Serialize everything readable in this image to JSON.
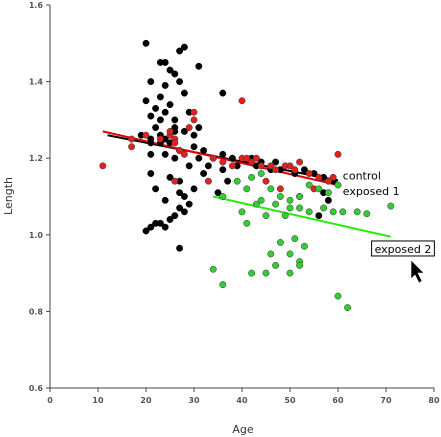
{
  "chart_data": {
    "type": "scatter",
    "xlabel": "Age",
    "ylabel": "Length",
    "xlim": [
      0,
      80
    ],
    "ylim": [
      0.6,
      1.6
    ],
    "xticks": [
      "0",
      "10",
      "20",
      "30",
      "40",
      "50",
      "60",
      "70",
      "80"
    ],
    "yticks": [
      "0.6",
      "0.8",
      "1.0",
      "1.2",
      "1.4",
      "1.6"
    ],
    "grid": false,
    "annotations": [
      {
        "text": "control",
        "x": 61,
        "y": 1.155
      },
      {
        "text": "exposed 1",
        "x": 61,
        "y": 1.115
      },
      {
        "text": "exposed 2",
        "x": 67,
        "y": 0.963,
        "boxed": true
      }
    ],
    "fit_lines": [
      {
        "name": "control",
        "color": "#000000",
        "x": [
          12,
          60
        ],
        "y": [
          1.26,
          1.142
        ]
      },
      {
        "name": "exposed 1",
        "color": "#e00000",
        "x": [
          11,
          60
        ],
        "y": [
          1.27,
          1.13
        ]
      },
      {
        "name": "exposed 2",
        "color": "#22ee00",
        "x": [
          34,
          71
        ],
        "y": [
          1.1,
          0.995
        ]
      }
    ],
    "series": [
      {
        "name": "control",
        "color": "#000000",
        "points": [
          [
            20,
            1.5
          ],
          [
            23,
            1.45
          ],
          [
            24,
            1.45
          ],
          [
            28,
            1.49
          ],
          [
            27,
            1.48
          ],
          [
            31,
            1.44
          ],
          [
            25,
            1.43
          ],
          [
            26,
            1.42
          ],
          [
            21,
            1.4
          ],
          [
            24,
            1.39
          ],
          [
            27,
            1.4
          ],
          [
            28,
            1.37
          ],
          [
            23,
            1.36
          ],
          [
            20,
            1.35
          ],
          [
            36,
            1.37
          ],
          [
            22,
            1.33
          ],
          [
            25,
            1.34
          ],
          [
            24,
            1.32
          ],
          [
            21,
            1.31
          ],
          [
            29,
            1.32
          ],
          [
            23,
            1.3
          ],
          [
            26,
            1.3
          ],
          [
            22,
            1.28
          ],
          [
            26,
            1.28
          ],
          [
            31,
            1.28
          ],
          [
            30,
            1.26
          ],
          [
            19,
            1.26
          ],
          [
            23,
            1.26
          ],
          [
            26,
            1.27
          ],
          [
            28,
            1.27
          ],
          [
            21,
            1.25
          ],
          [
            24,
            1.25
          ],
          [
            23,
            1.24
          ],
          [
            25,
            1.24
          ],
          [
            21,
            1.24
          ],
          [
            30,
            1.23
          ],
          [
            27,
            1.22
          ],
          [
            32,
            1.22
          ],
          [
            21,
            1.21
          ],
          [
            24,
            1.21
          ],
          [
            26,
            1.2
          ],
          [
            31,
            1.2
          ],
          [
            34,
            1.2
          ],
          [
            36,
            1.21
          ],
          [
            38,
            1.2
          ],
          [
            42,
            1.2
          ],
          [
            44,
            1.19
          ],
          [
            47,
            1.19
          ],
          [
            29,
            1.18
          ],
          [
            33,
            1.18
          ],
          [
            36,
            1.17
          ],
          [
            39,
            1.18
          ],
          [
            43,
            1.18
          ],
          [
            46,
            1.17
          ],
          [
            48,
            1.17
          ],
          [
            51,
            1.16
          ],
          [
            53,
            1.17
          ],
          [
            55,
            1.16
          ],
          [
            57,
            1.15
          ],
          [
            59,
            1.14
          ],
          [
            21,
            1.16
          ],
          [
            25,
            1.15
          ],
          [
            27,
            1.14
          ],
          [
            32,
            1.16
          ],
          [
            37,
            1.14
          ],
          [
            22,
            1.12
          ],
          [
            27,
            1.11
          ],
          [
            28,
            1.1
          ],
          [
            30,
            1.12
          ],
          [
            35,
            1.11
          ],
          [
            24,
            1.09
          ],
          [
            29,
            1.08
          ],
          [
            27,
            1.07
          ],
          [
            28,
            1.06
          ],
          [
            26,
            1.05
          ],
          [
            25,
            1.04
          ],
          [
            23,
            1.03
          ],
          [
            22,
            1.03
          ],
          [
            21,
            1.02
          ],
          [
            20,
            1.01
          ],
          [
            24,
            1.02
          ],
          [
            27,
            0.965
          ],
          [
            56,
            1.05
          ],
          [
            58,
            1.09
          ],
          [
            57,
            1.11
          ]
        ]
      },
      {
        "name": "exposed 1",
        "color": "#dd2222",
        "points": [
          [
            11,
            1.18
          ],
          [
            17,
            1.23
          ],
          [
            17,
            1.25
          ],
          [
            20,
            1.26
          ],
          [
            23,
            1.25
          ],
          [
            25,
            1.26
          ],
          [
            25,
            1.27
          ],
          [
            26,
            1.25
          ],
          [
            26,
            1.24
          ],
          [
            28,
            1.21
          ],
          [
            29,
            1.28
          ],
          [
            30,
            1.32
          ],
          [
            30,
            1.3
          ],
          [
            27,
            1.22
          ],
          [
            26,
            1.14
          ],
          [
            33,
            1.14
          ],
          [
            40,
            1.35
          ],
          [
            34,
            1.2
          ],
          [
            36,
            1.19
          ],
          [
            38,
            1.18
          ],
          [
            40,
            1.2
          ],
          [
            41,
            1.2
          ],
          [
            42,
            1.19
          ],
          [
            43,
            1.2
          ],
          [
            44,
            1.18
          ],
          [
            46,
            1.18
          ],
          [
            47,
            1.17
          ],
          [
            49,
            1.18
          ],
          [
            50,
            1.18
          ],
          [
            51,
            1.17
          ],
          [
            52,
            1.19
          ],
          [
            54,
            1.16
          ],
          [
            56,
            1.15
          ],
          [
            58,
            1.14
          ],
          [
            59,
            1.15
          ],
          [
            60,
            1.21
          ],
          [
            52,
            1.1
          ],
          [
            55,
            1.12
          ],
          [
            48,
            1.12
          ],
          [
            45,
            1.14
          ]
        ]
      },
      {
        "name": "exposed 2",
        "color": "#33cc33",
        "points": [
          [
            36,
            1.1
          ],
          [
            39,
            1.14
          ],
          [
            41,
            1.12
          ],
          [
            42,
            1.15
          ],
          [
            44,
            1.16
          ],
          [
            46,
            1.12
          ],
          [
            48,
            1.1
          ],
          [
            50,
            1.09
          ],
          [
            52,
            1.1
          ],
          [
            54,
            1.13
          ],
          [
            56,
            1.12
          ],
          [
            58,
            1.11
          ],
          [
            60,
            1.13
          ],
          [
            44,
            1.09
          ],
          [
            47,
            1.08
          ],
          [
            50,
            1.07
          ],
          [
            45,
            1.05
          ],
          [
            49,
            1.05
          ],
          [
            52,
            1.07
          ],
          [
            54,
            1.06
          ],
          [
            57,
            1.07
          ],
          [
            59,
            1.06
          ],
          [
            61,
            1.06
          ],
          [
            64,
            1.06
          ],
          [
            66,
            1.055
          ],
          [
            71,
            1.075
          ],
          [
            43,
            1.08
          ],
          [
            41,
            1.03
          ],
          [
            40,
            1.06
          ],
          [
            48,
            0.98
          ],
          [
            51,
            0.99
          ],
          [
            53,
            0.97
          ],
          [
            46,
            0.95
          ],
          [
            50,
            0.95
          ],
          [
            52,
            0.93
          ],
          [
            34,
            0.91
          ],
          [
            36,
            0.87
          ],
          [
            42,
            0.9
          ],
          [
            45,
            0.9
          ],
          [
            47,
            0.92
          ],
          [
            50,
            0.9
          ],
          [
            52,
            0.92
          ],
          [
            60,
            0.84
          ],
          [
            62,
            0.81
          ]
        ]
      }
    ]
  }
}
